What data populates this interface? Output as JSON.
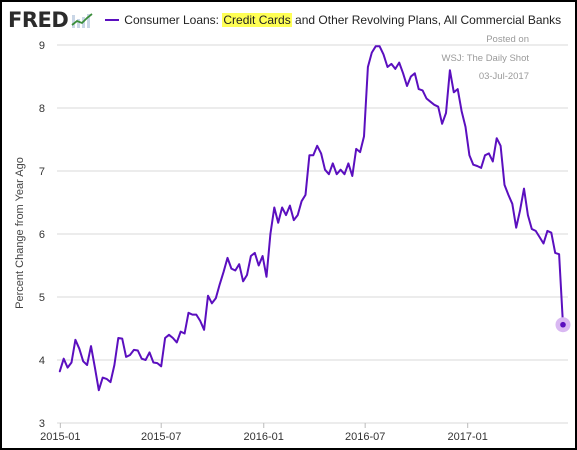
{
  "header": {
    "logo_text": "FRED",
    "series_title_before": "Consumer Loans: ",
    "series_title_highlight": "Credit Cards",
    "series_title_after": " and Other Revolving Plans, All Commercial Banks"
  },
  "watermark": {
    "line1": "Posted on",
    "line2": "WSJ: The Daily Shot",
    "line3": "03-Jul-2017"
  },
  "colors": {
    "series": "#5b0fbf",
    "grid": "#d9d9d9",
    "highlight": "#ffff55",
    "end_marker_halo": "#d9b8f2"
  },
  "chart_data": {
    "type": "line",
    "title": "Consumer Loans: Credit Cards and Other Revolving Plans, All Commercial Banks",
    "xlabel": "",
    "ylabel": "Percent Change from Year Ago",
    "ylim": [
      3,
      9
    ],
    "yticks": [
      3,
      4,
      5,
      6,
      7,
      8,
      9
    ],
    "xlim": [
      "2014-12-26",
      "2017-06-30"
    ],
    "xticks": [
      {
        "date": "2015-01-01",
        "label": "2015-01"
      },
      {
        "date": "2015-07-01",
        "label": "2015-07"
      },
      {
        "date": "2016-01-01",
        "label": "2016-01"
      },
      {
        "date": "2016-07-01",
        "label": "2016-07"
      },
      {
        "date": "2017-01-01",
        "label": "2017-01"
      }
    ],
    "grid": "horizontal",
    "legend": "top-left",
    "icon": "fred-line-chart-icon",
    "x": [
      "2014-12-31",
      "2015-01-07",
      "2015-01-14",
      "2015-01-21",
      "2015-01-28",
      "2015-02-04",
      "2015-02-11",
      "2015-02-18",
      "2015-02-25",
      "2015-03-04",
      "2015-03-11",
      "2015-03-18",
      "2015-03-25",
      "2015-04-01",
      "2015-04-08",
      "2015-04-15",
      "2015-04-22",
      "2015-04-29",
      "2015-05-06",
      "2015-05-13",
      "2015-05-20",
      "2015-05-27",
      "2015-06-03",
      "2015-06-10",
      "2015-06-17",
      "2015-06-24",
      "2015-07-01",
      "2015-07-08",
      "2015-07-15",
      "2015-07-22",
      "2015-07-29",
      "2015-08-05",
      "2015-08-12",
      "2015-08-19",
      "2015-08-26",
      "2015-09-02",
      "2015-09-09",
      "2015-09-16",
      "2015-09-23",
      "2015-09-30",
      "2015-10-07",
      "2015-10-14",
      "2015-10-21",
      "2015-10-28",
      "2015-11-04",
      "2015-11-11",
      "2015-11-18",
      "2015-11-25",
      "2015-12-02",
      "2015-12-09",
      "2015-12-16",
      "2015-12-23",
      "2015-12-30",
      "2016-01-06",
      "2016-01-13",
      "2016-01-20",
      "2016-01-27",
      "2016-02-03",
      "2016-02-10",
      "2016-02-17",
      "2016-02-24",
      "2016-03-02",
      "2016-03-09",
      "2016-03-16",
      "2016-03-23",
      "2016-03-30",
      "2016-04-06",
      "2016-04-13",
      "2016-04-20",
      "2016-04-27",
      "2016-05-04",
      "2016-05-11",
      "2016-05-18",
      "2016-05-25",
      "2016-06-01",
      "2016-06-08",
      "2016-06-15",
      "2016-06-22",
      "2016-06-29",
      "2016-07-06",
      "2016-07-13",
      "2016-07-20",
      "2016-07-27",
      "2016-08-03",
      "2016-08-10",
      "2016-08-17",
      "2016-08-24",
      "2016-08-31",
      "2016-09-07",
      "2016-09-14",
      "2016-09-21",
      "2016-09-28",
      "2016-10-05",
      "2016-10-12",
      "2016-10-19",
      "2016-10-26",
      "2016-11-02",
      "2016-11-09",
      "2016-11-16",
      "2016-11-23",
      "2016-11-30",
      "2016-12-07",
      "2016-12-14",
      "2016-12-21",
      "2016-12-28",
      "2017-01-04",
      "2017-01-11",
      "2017-01-18",
      "2017-01-25",
      "2017-02-01",
      "2017-02-08",
      "2017-02-15",
      "2017-02-22",
      "2017-03-01",
      "2017-03-08",
      "2017-03-15",
      "2017-03-22",
      "2017-03-29",
      "2017-04-05",
      "2017-04-12",
      "2017-04-19",
      "2017-04-26",
      "2017-05-03",
      "2017-05-10",
      "2017-05-17",
      "2017-05-24",
      "2017-05-31",
      "2017-06-07",
      "2017-06-14",
      "2017-06-21"
    ],
    "series": [
      {
        "name": "Consumer Loans: Credit Cards and Other Revolving Plans, All Commercial Banks",
        "values": [
          3.82,
          4.02,
          3.88,
          3.96,
          4.32,
          4.18,
          3.98,
          3.92,
          4.22,
          3.88,
          3.52,
          3.72,
          3.7,
          3.65,
          3.92,
          4.35,
          4.34,
          4.05,
          4.08,
          4.16,
          4.15,
          4.02,
          4.0,
          4.12,
          3.96,
          3.95,
          3.9,
          4.35,
          4.4,
          4.35,
          4.28,
          4.45,
          4.42,
          4.75,
          4.72,
          4.72,
          4.62,
          4.48,
          5.02,
          4.9,
          4.98,
          5.2,
          5.4,
          5.62,
          5.45,
          5.42,
          5.52,
          5.25,
          5.35,
          5.65,
          5.7,
          5.5,
          5.65,
          5.32,
          6.0,
          6.42,
          6.18,
          6.42,
          6.3,
          6.45,
          6.22,
          6.3,
          6.52,
          6.62,
          7.25,
          7.25,
          7.4,
          7.28,
          7.02,
          6.95,
          7.12,
          6.95,
          7.02,
          6.95,
          7.12,
          6.92,
          7.35,
          7.3,
          7.55,
          8.65,
          8.88,
          8.98,
          8.98,
          8.85,
          8.65,
          8.7,
          8.62,
          8.72,
          8.55,
          8.35,
          8.5,
          8.55,
          8.3,
          8.28,
          8.15,
          8.1,
          8.05,
          8.02,
          7.75,
          7.92,
          8.6,
          8.25,
          8.3,
          7.95,
          7.7,
          7.25,
          7.1,
          7.08,
          7.05,
          7.25,
          7.28,
          7.15,
          7.52,
          7.4,
          6.78,
          6.62,
          6.48,
          6.1,
          6.38,
          6.72,
          6.3,
          6.08,
          6.05,
          5.95,
          5.85,
          6.05,
          6.02,
          5.7,
          5.68,
          4.56
        ]
      }
    ]
  }
}
